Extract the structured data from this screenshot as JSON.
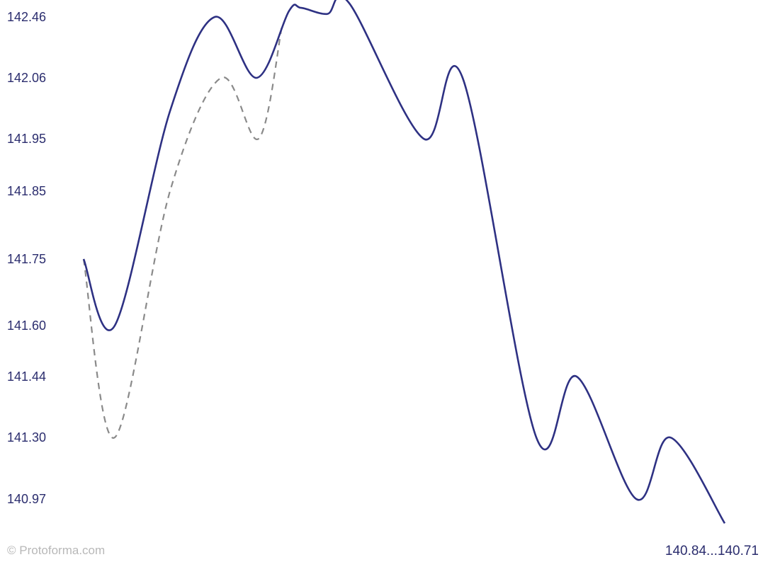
{
  "chart_data": {
    "type": "line",
    "title": "",
    "xlabel": "",
    "ylabel": "",
    "y_tick_labels": [
      "142.46",
      "142.06",
      "141.95",
      "141.85",
      "141.75",
      "141.60",
      "141.44",
      "141.30",
      "140.97"
    ],
    "range_label": "140.84...140.71",
    "grid": false,
    "legend": "none",
    "series": [
      {
        "style": "solid",
        "color": "#2e3183",
        "values": [
          141.75,
          141.6,
          142.0,
          142.46,
          142.06,
          142.5,
          142.52,
          142.48,
          142.55,
          141.95,
          142.06,
          141.3,
          141.44,
          140.97,
          141.3,
          140.84
        ]
      },
      {
        "style": "dashed",
        "color": "#8a8a8a",
        "values": [
          141.75,
          141.3,
          141.85,
          142.06,
          141.95,
          142.4
        ]
      }
    ]
  },
  "watermark": "© Protoforma.com"
}
